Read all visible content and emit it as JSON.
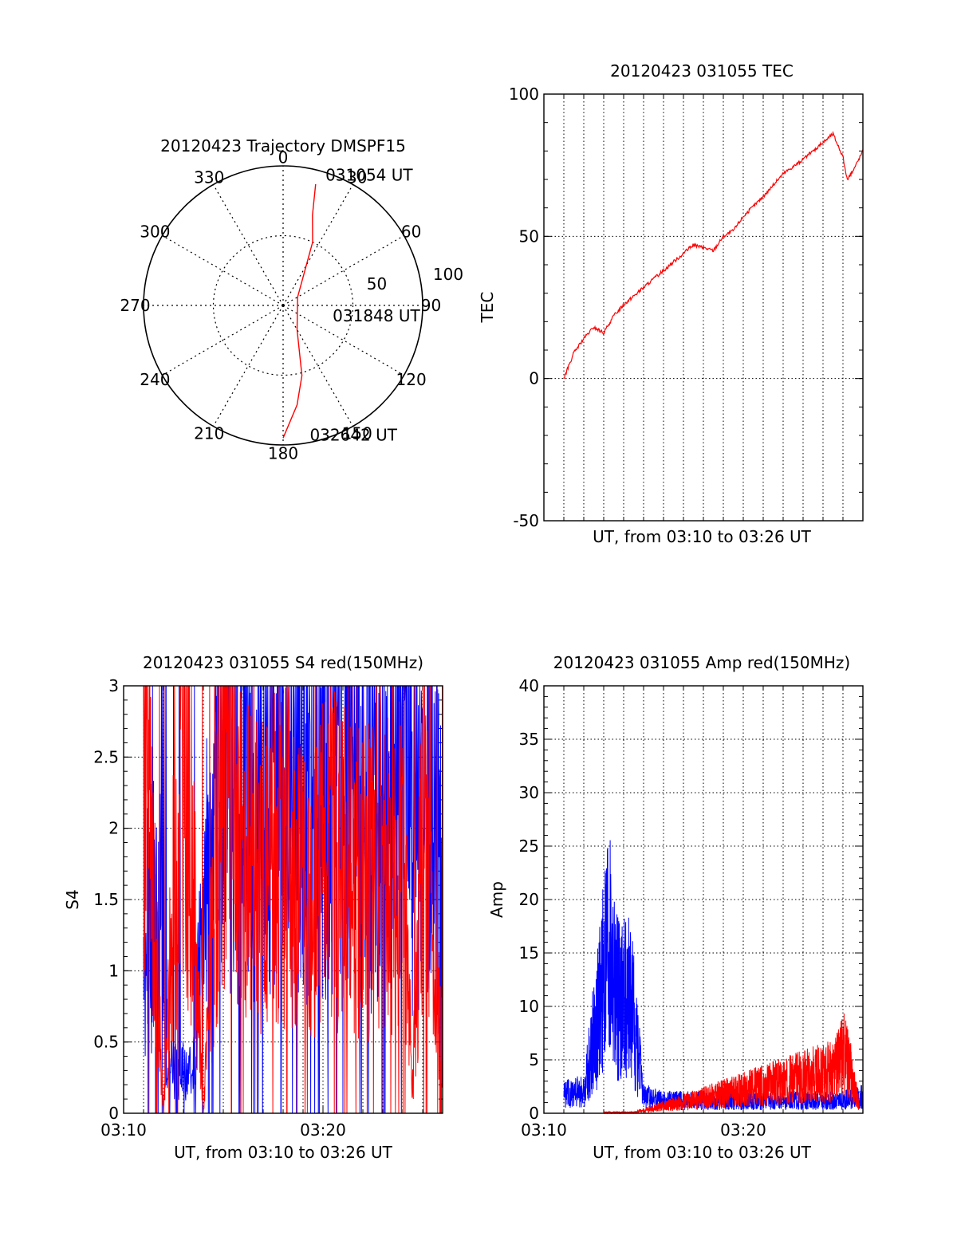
{
  "colors": {
    "red": "#ff0000",
    "blue": "#0000ff",
    "axis": "#000000",
    "grid": "#000000"
  },
  "chart_data": [
    {
      "type": "polar",
      "title": "20120423 Trajectory DMSPF15",
      "azimuth_labels": [
        "0",
        "30",
        "60",
        "90",
        "120",
        "150",
        "180",
        "210",
        "240",
        "270",
        "300",
        "330"
      ],
      "radial_labels": [
        "50",
        "100"
      ],
      "radial_values": [
        50,
        100
      ],
      "radial_max": 100,
      "series": [
        {
          "color": "red",
          "points": [
            [
              15,
              90
            ],
            [
              18,
              68
            ],
            [
              25,
              50
            ],
            [
              60,
              12
            ],
            [
              150,
              20
            ],
            [
              165,
              52
            ],
            [
              172,
              72
            ],
            [
              180,
              95
            ]
          ]
        }
      ],
      "annotations": [
        {
          "text": "031054 UT",
          "az": 20,
          "r": 100
        },
        {
          "text": "031848 UT",
          "az": 100,
          "r": 40
        },
        {
          "text": "032642 UT",
          "az": 166,
          "r": 95
        }
      ]
    },
    {
      "type": "line",
      "title": "20120423 031055 TEC",
      "xlabel": "UT, from 03:10 to 03:26 UT",
      "ylabel": "TEC",
      "xlim": [
        0,
        16
      ],
      "ylim": [
        -50,
        100
      ],
      "yticks": [
        -50,
        0,
        50,
        100
      ],
      "grid": true,
      "series": [
        {
          "color": "red",
          "x": [
            1,
            1.5,
            2,
            2.5,
            3,
            3.5,
            4,
            5,
            6,
            7,
            7.5,
            8,
            8.5,
            9,
            9.5,
            10,
            11,
            12,
            13,
            14,
            14.5,
            15,
            15.2,
            15.5,
            16
          ],
          "y": [
            0,
            9,
            14,
            18,
            16,
            22,
            26,
            32,
            38,
            44,
            47,
            46,
            45,
            50,
            52,
            57,
            64,
            72,
            77,
            83,
            86,
            78,
            70,
            73,
            80
          ]
        }
      ]
    },
    {
      "type": "line",
      "title": "20120423 031055 S4 red(150MHz)",
      "xlabel": "UT, from 03:10 to 03:26 UT",
      "ylabel": "S4",
      "xlim": [
        0,
        16
      ],
      "ylim": [
        0,
        3
      ],
      "yticks": [
        "0",
        "0.5",
        "1",
        "1.5",
        "2",
        "2.5",
        "3"
      ],
      "ytick_values": [
        0,
        0.5,
        1,
        1.5,
        2,
        2.5,
        3
      ],
      "xticks": [
        "03:10",
        "03:20"
      ],
      "xtick_values": [
        0,
        10
      ],
      "grid": true,
      "series": [
        {
          "color": "blue",
          "x": [
            1,
            1.5,
            2,
            2.1,
            3,
            3.5,
            4,
            5,
            6,
            7,
            8,
            9,
            10,
            11,
            12,
            13,
            14,
            15,
            15.5,
            16
          ],
          "y": [
            1.3,
            1.4,
            1.3,
            0.3,
            0.3,
            0.3,
            1.4,
            2.6,
            2.5,
            2.4,
            2.3,
            2.5,
            2.4,
            2.3,
            2.3,
            2.2,
            2.4,
            1.8,
            2.2,
            1.5
          ]
        },
        {
          "color": "red",
          "x": [
            1,
            2,
            3,
            4,
            5,
            6,
            7,
            8,
            9,
            10,
            11,
            12,
            13,
            14,
            14.5,
            15,
            16
          ],
          "y": [
            3,
            0,
            3,
            0,
            2.8,
            1.8,
            1.7,
            1.8,
            1.7,
            1.8,
            1.7,
            1.6,
            1.7,
            1.8,
            0.2,
            2.0,
            0.4
          ]
        }
      ]
    },
    {
      "type": "line",
      "title": "20120423 031055 Amp red(150MHz)",
      "xlabel": "UT, from 03:10 to 03:26 UT",
      "ylabel": "Amp",
      "xlim": [
        0,
        16
      ],
      "ylim": [
        0,
        40
      ],
      "yticks": [
        0,
        5,
        10,
        15,
        20,
        25,
        30,
        35,
        40
      ],
      "xticks": [
        "03:10",
        "03:20"
      ],
      "xtick_values": [
        0,
        10
      ],
      "grid": true,
      "series": [
        {
          "color": "blue",
          "x": [
            1,
            2,
            2.9,
            3.2,
            3.6,
            4.4,
            5,
            6,
            7,
            8,
            9,
            10,
            11,
            12,
            13,
            14,
            15,
            16
          ],
          "y": [
            2.5,
            2.5,
            14,
            21,
            14,
            13,
            2,
            1.5,
            1.5,
            1.5,
            1.5,
            1.5,
            1.5,
            1.5,
            1.5,
            1.5,
            1.5,
            2.0
          ]
        },
        {
          "color": "red",
          "x": [
            3.0,
            4.5,
            14.6,
            15.0,
            15.4,
            15.8
          ],
          "y": [
            0.1,
            0.1,
            5,
            7,
            5,
            1
          ]
        }
      ]
    }
  ]
}
